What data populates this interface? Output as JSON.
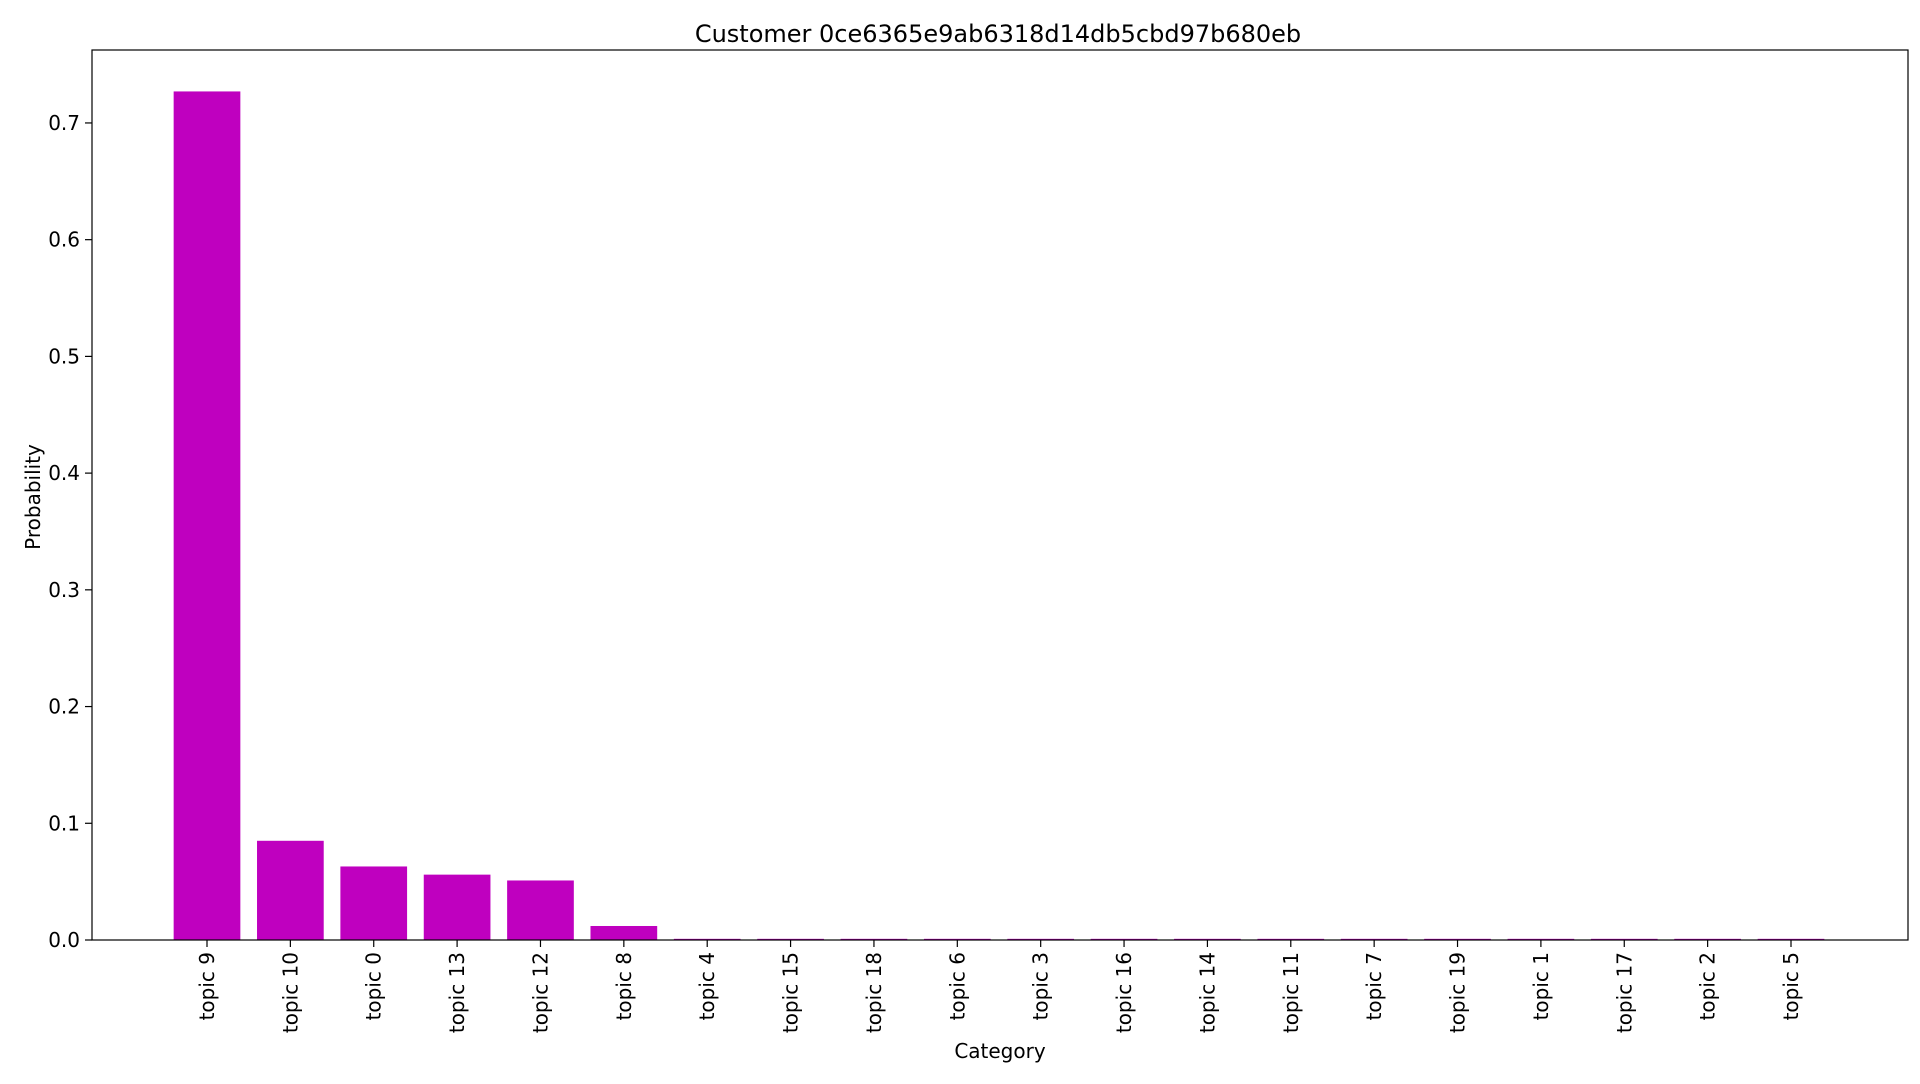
{
  "chart_data": {
    "type": "bar",
    "title": "Customer 0ce6365e9ab6318d14db5cbd97b680eb",
    "xlabel": "Category",
    "ylabel": "Probability",
    "categories": [
      "topic 9",
      "topic 10",
      "topic 0",
      "topic 13",
      "topic 12",
      "topic 8",
      "topic 4",
      "topic 15",
      "topic 18",
      "topic 6",
      "topic 3",
      "topic 16",
      "topic 14",
      "topic 11",
      "topic 7",
      "topic 19",
      "topic 1",
      "topic 17",
      "topic 2",
      "topic 5"
    ],
    "values": [
      0.727,
      0.085,
      0.063,
      0.056,
      0.051,
      0.012,
      0.001,
      0.001,
      0.001,
      0.001,
      0.001,
      0.001,
      0.001,
      0.001,
      0.001,
      0.001,
      0.001,
      0.001,
      0.001,
      0.001
    ],
    "ylim": [
      0,
      0.7625
    ],
    "yticks": [
      0.0,
      0.1,
      0.2,
      0.3,
      0.4,
      0.5,
      0.6,
      0.7
    ],
    "ytick_labels": [
      "0.0",
      "0.1",
      "0.2",
      "0.3",
      "0.4",
      "0.5",
      "0.6",
      "0.7"
    ],
    "bar_color": "#bf00bf",
    "grid": false,
    "legend": "none"
  }
}
